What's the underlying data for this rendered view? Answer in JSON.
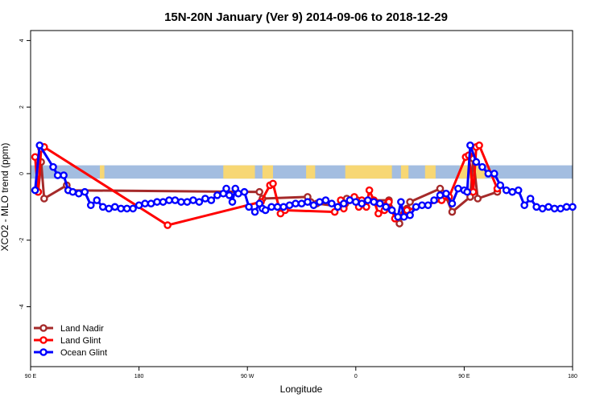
{
  "chart_data": {
    "type": "line",
    "title": "15N-20N January (Ver 9)   2014-09-06 to 2018-12-29",
    "xlabel": "Longitude",
    "ylabel": "XCO2 - MLO trend (ppm)",
    "xlim": [
      90,
      450
    ],
    "ylim": [
      -5.8,
      4.3
    ],
    "x_ticks": [
      {
        "x": 90,
        "label": "90 E"
      },
      {
        "x": 162,
        "label": "180"
      },
      {
        "x": 234,
        "label": "90 W"
      },
      {
        "x": 306,
        "label": "0"
      },
      {
        "x": 378,
        "label": "90 E"
      },
      {
        "x": 450,
        "label": "180"
      }
    ],
    "y_ticks": [
      {
        "y": -4,
        "label": "-4"
      },
      {
        "y": -2,
        "label": "-2"
      },
      {
        "y": 0,
        "label": "0"
      },
      {
        "y": 2,
        "label": "2"
      },
      {
        "y": 4,
        "label": "4"
      }
    ],
    "land_band": {
      "y_range": [
        -0.15,
        0.25
      ],
      "ocean_color": "#a3bde0",
      "land_color": "#f7d774",
      "land_segments": [
        [
          136,
          139
        ],
        [
          218,
          239
        ],
        [
          244,
          251
        ],
        [
          273,
          279
        ],
        [
          299,
          330
        ],
        [
          336,
          341
        ],
        [
          352,
          359
        ],
        [
          375,
          392
        ]
      ]
    },
    "legend_position": "bottom-left",
    "series": [
      {
        "name": "Land Nadir",
        "color": "#a52a2a",
        "points": [
          [
            95,
            -0.55
          ],
          [
            97,
            0.35
          ],
          [
            99,
            -0.75
          ],
          [
            114,
            -0.35
          ],
          [
            115,
            -0.5
          ],
          [
            242,
            -0.55
          ],
          [
            244,
            -0.75
          ],
          [
            274,
            -0.7
          ],
          [
            276,
            -0.85
          ],
          [
            280,
            -0.9
          ],
          [
            298,
            -1.0
          ],
          [
            299,
            -0.9
          ],
          [
            300,
            -0.75
          ],
          [
            307,
            -0.8
          ],
          [
            328,
            -0.8
          ],
          [
            335,
            -1.5
          ],
          [
            338,
            -1.2
          ],
          [
            340,
            -1.05
          ],
          [
            342,
            -0.85
          ],
          [
            362,
            -0.45
          ],
          [
            364,
            -0.6
          ],
          [
            366,
            -0.7
          ],
          [
            370,
            -1.15
          ],
          [
            382,
            -0.7
          ],
          [
            384,
            0.45
          ],
          [
            387,
            -0.75
          ],
          [
            400,
            -0.55
          ]
        ]
      },
      {
        "name": "Land Glint",
        "color": "#ff0000",
        "points": [
          [
            93,
            0.5
          ],
          [
            95,
            -0.55
          ],
          [
            97,
            0.75
          ],
          [
            99,
            0.8
          ],
          [
            181,
            -1.55
          ],
          [
            243,
            -0.85
          ],
          [
            249,
            -0.35
          ],
          [
            251,
            -0.3
          ],
          [
            256,
            -1.2
          ],
          [
            259,
            -1.1
          ],
          [
            292,
            -1.15
          ],
          [
            296,
            -0.8
          ],
          [
            298,
            -1.05
          ],
          [
            302,
            -0.8
          ],
          [
            305,
            -0.7
          ],
          [
            308,
            -1.0
          ],
          [
            310,
            -0.8
          ],
          [
            313,
            -1.0
          ],
          [
            315,
            -0.5
          ],
          [
            318,
            -0.8
          ],
          [
            321,
            -1.2
          ],
          [
            325,
            -1.1
          ],
          [
            326,
            -0.95
          ],
          [
            328,
            -0.85
          ],
          [
            330,
            -1.1
          ],
          [
            332,
            -1.35
          ],
          [
            338,
            -1.25
          ],
          [
            340,
            -1.1
          ],
          [
            363,
            -0.8
          ],
          [
            368,
            -0.7
          ],
          [
            379,
            0.5
          ],
          [
            381,
            0.55
          ],
          [
            384,
            -0.55
          ],
          [
            386,
            0.8
          ],
          [
            388,
            0.85
          ],
          [
            400,
            -0.45
          ]
        ]
      },
      {
        "name": "Ocean Glint",
        "color": "#0000ff",
        "points": [
          [
            93,
            -0.5
          ],
          [
            96,
            0.85
          ],
          [
            105,
            0.2
          ],
          [
            108,
            -0.05
          ],
          [
            112,
            -0.05
          ],
          [
            115,
            -0.5
          ],
          [
            118,
            -0.55
          ],
          [
            122,
            -0.6
          ],
          [
            126,
            -0.55
          ],
          [
            130,
            -0.95
          ],
          [
            134,
            -0.8
          ],
          [
            138,
            -1.0
          ],
          [
            142,
            -1.05
          ],
          [
            146,
            -1.0
          ],
          [
            150,
            -1.05
          ],
          [
            154,
            -1.05
          ],
          [
            158,
            -1.05
          ],
          [
            162,
            -0.95
          ],
          [
            166,
            -0.9
          ],
          [
            170,
            -0.9
          ],
          [
            174,
            -0.85
          ],
          [
            178,
            -0.85
          ],
          [
            182,
            -0.8
          ],
          [
            186,
            -0.8
          ],
          [
            190,
            -0.85
          ],
          [
            194,
            -0.85
          ],
          [
            198,
            -0.8
          ],
          [
            202,
            -0.85
          ],
          [
            206,
            -0.75
          ],
          [
            210,
            -0.8
          ],
          [
            214,
            -0.65
          ],
          [
            218,
            -0.6
          ],
          [
            220,
            -0.45
          ],
          [
            222,
            -0.65
          ],
          [
            224,
            -0.85
          ],
          [
            226,
            -0.45
          ],
          [
            228,
            -0.6
          ],
          [
            232,
            -0.55
          ],
          [
            235,
            -1.0
          ],
          [
            239,
            -1.15
          ],
          [
            242,
            -0.9
          ],
          [
            244,
            -1.05
          ],
          [
            246,
            -1.1
          ],
          [
            250,
            -1.0
          ],
          [
            254,
            -1.0
          ],
          [
            258,
            -1.0
          ],
          [
            262,
            -0.95
          ],
          [
            266,
            -0.9
          ],
          [
            270,
            -0.9
          ],
          [
            274,
            -0.85
          ],
          [
            278,
            -0.95
          ],
          [
            282,
            -0.85
          ],
          [
            286,
            -0.8
          ],
          [
            290,
            -0.9
          ],
          [
            294,
            -1.0
          ],
          [
            298,
            -0.9
          ],
          [
            302,
            -0.8
          ],
          [
            306,
            -0.85
          ],
          [
            310,
            -0.9
          ],
          [
            314,
            -0.8
          ],
          [
            318,
            -0.85
          ],
          [
            322,
            -0.9
          ],
          [
            326,
            -1.0
          ],
          [
            330,
            -1.1
          ],
          [
            334,
            -1.3
          ],
          [
            336,
            -0.85
          ],
          [
            338,
            -1.3
          ],
          [
            342,
            -1.25
          ],
          [
            346,
            -1.0
          ],
          [
            350,
            -0.95
          ],
          [
            354,
            -0.95
          ],
          [
            358,
            -0.8
          ],
          [
            362,
            -0.65
          ],
          [
            366,
            -0.6
          ],
          [
            370,
            -0.9
          ],
          [
            374,
            -0.45
          ],
          [
            378,
            -0.5
          ],
          [
            380,
            -0.55
          ],
          [
            382,
            0.85
          ],
          [
            386,
            0.35
          ],
          [
            390,
            0.2
          ],
          [
            394,
            0.0
          ],
          [
            398,
            0.0
          ],
          [
            402,
            -0.35
          ],
          [
            406,
            -0.5
          ],
          [
            410,
            -0.55
          ],
          [
            414,
            -0.5
          ],
          [
            418,
            -0.95
          ],
          [
            422,
            -0.75
          ],
          [
            426,
            -1.0
          ],
          [
            430,
            -1.05
          ],
          [
            434,
            -1.0
          ],
          [
            438,
            -1.05
          ],
          [
            442,
            -1.05
          ],
          [
            446,
            -1.0
          ],
          [
            450,
            -1.0
          ]
        ]
      }
    ]
  }
}
